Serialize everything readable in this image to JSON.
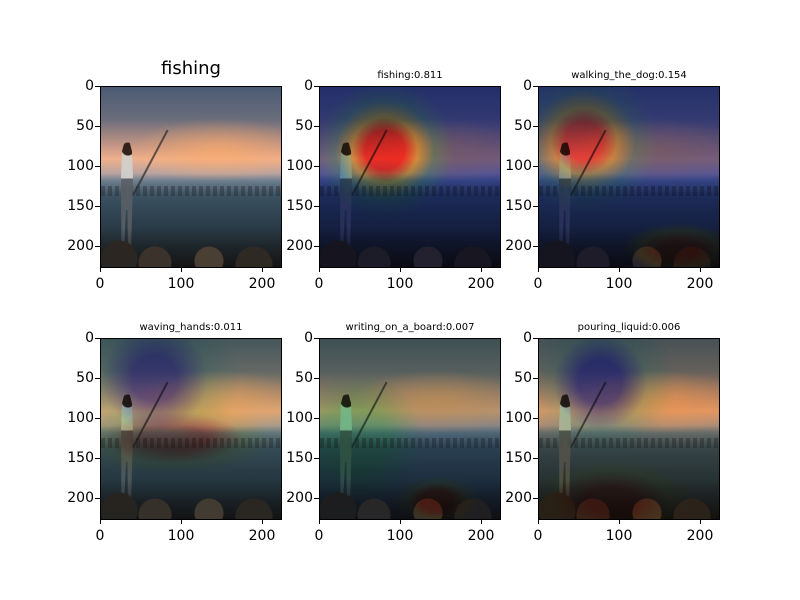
{
  "panels": [
    {
      "title": "fishing",
      "title_style": "big",
      "heatmap": "none"
    },
    {
      "title": "fishing:0.811",
      "title_style": "small",
      "heatmap": "fishing"
    },
    {
      "title": "walking_the_dog:0.154",
      "title_style": "small",
      "heatmap": "walking"
    },
    {
      "title": "waving_hands:0.011",
      "title_style": "small",
      "heatmap": "waving"
    },
    {
      "title": "writing_on_a_board:0.007",
      "title_style": "small",
      "heatmap": "writing"
    },
    {
      "title": "pouring_liquid:0.006",
      "title_style": "small",
      "heatmap": "pouring"
    }
  ],
  "axes": {
    "y_ticks": [
      "0",
      "50",
      "100",
      "150",
      "200"
    ],
    "x_ticks": [
      "0",
      "100",
      "200"
    ]
  }
}
